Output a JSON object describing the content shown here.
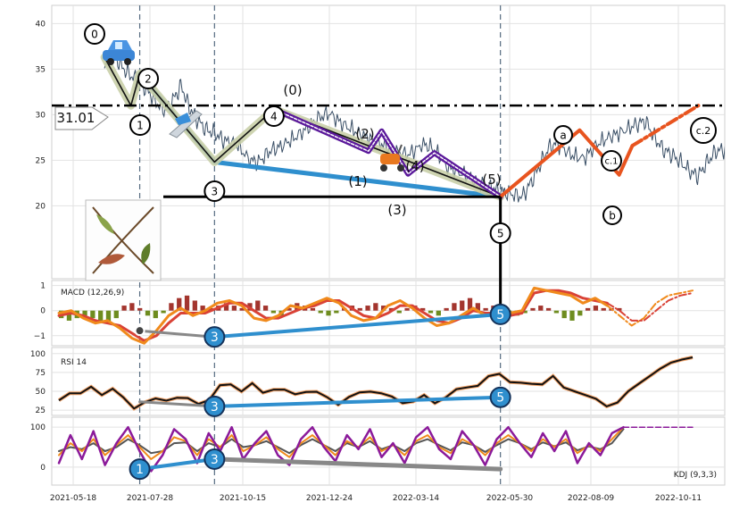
{
  "chart_data": [
    {
      "type": "line",
      "panel": "price",
      "ylim": [
        12,
        42
      ],
      "yticks": [
        20,
        25,
        30,
        35,
        40
      ],
      "grid": true,
      "reference_line": {
        "value": 31.01,
        "label": "31.01"
      },
      "x_dates": [
        "2021-05-18",
        "2021-07-28",
        "2021-10-15",
        "2021-12-24",
        "2022-03-14",
        "2022-05-30",
        "2022-08-09",
        "2022-10-11"
      ],
      "price_series": [
        [
          20,
          35.5
        ],
        [
          24,
          36.8
        ],
        [
          28,
          35.2
        ],
        [
          32,
          34.3
        ],
        [
          36,
          33.6
        ],
        [
          40,
          32.5
        ],
        [
          44,
          31.2
        ],
        [
          48,
          30.4
        ],
        [
          52,
          32.0
        ],
        [
          55,
          33.2
        ],
        [
          58,
          31.0
        ],
        [
          62,
          29.5
        ],
        [
          66,
          28.4
        ],
        [
          70,
          28.0
        ],
        [
          74,
          27.2
        ],
        [
          80,
          26.8
        ],
        [
          86,
          25.0
        ],
        [
          90,
          24.8
        ],
        [
          95,
          26.0
        ],
        [
          100,
          26.5
        ],
        [
          106,
          27.4
        ],
        [
          112,
          28.5
        ],
        [
          117,
          29.6
        ],
        [
          122,
          30.2
        ],
        [
          128,
          29.0
        ],
        [
          134,
          28.2
        ],
        [
          140,
          27.4
        ],
        [
          146,
          26.8
        ],
        [
          152,
          26.0
        ],
        [
          158,
          25.6
        ],
        [
          165,
          26.8
        ],
        [
          170,
          26.2
        ],
        [
          176,
          24.2
        ],
        [
          182,
          23.6
        ],
        [
          188,
          22.8
        ],
        [
          194,
          22.2
        ],
        [
          200,
          21.6
        ],
        [
          205,
          21.3
        ],
        [
          210,
          21.0
        ],
        [
          214,
          22.6
        ],
        [
          218,
          24.5
        ],
        [
          222,
          26.4
        ],
        [
          226,
          26.8
        ],
        [
          232,
          25.6
        ],
        [
          238,
          25.2
        ],
        [
          244,
          26.8
        ],
        [
          250,
          27.6
        ],
        [
          256,
          28.2
        ],
        [
          262,
          29.0
        ],
        [
          266,
          29.3
        ],
        [
          270,
          27.5
        ],
        [
          274,
          26.2
        ],
        [
          278,
          25.6
        ],
        [
          282,
          24.8
        ],
        [
          287,
          23.6
        ],
        [
          290,
          23.3
        ],
        [
          294,
          24.8
        ],
        [
          298,
          26.0
        ],
        [
          302,
          26.2
        ],
        [
          306,
          27.0
        ]
      ],
      "labels": [
        "0",
        "1",
        "2",
        "3",
        "4",
        "5",
        "(0)",
        "(1)",
        "(2)",
        "(3)",
        "(4)",
        "(5)",
        "a",
        "b",
        "c.1",
        "c.2"
      ],
      "lines": [
        {
          "name": "blue",
          "color": "#2f8fce",
          "points": [
            [
              36,
              34.5
            ],
            [
              70,
              24.8
            ],
            [
              200,
              21.0
            ]
          ]
        },
        {
          "name": "black",
          "color": "#111111",
          "points": [
            [
              20,
              36.3
            ],
            [
              32,
              31.0
            ],
            [
              36,
              34.5
            ],
            [
              70,
              24.8
            ],
            [
              97,
              30.6
            ],
            [
              200,
              21.0
            ]
          ]
        },
        {
          "name": "purple",
          "color": "#5a189a",
          "points": [
            [
              97,
              30.6
            ],
            [
              140,
              26.0
            ],
            [
              146,
              28.2
            ],
            [
              158,
              23.5
            ],
            [
              170,
              25.8
            ],
            [
              200,
              21.0
            ]
          ]
        },
        {
          "name": "orange",
          "color": "#e8541f",
          "points": [
            [
              200,
              21.0
            ],
            [
              236,
              28.3
            ],
            [
              254,
              23.4
            ],
            [
              260,
              26.6
            ],
            [
              290,
              31.0
            ]
          ]
        }
      ]
    },
    {
      "type": "bar",
      "panel": "macd",
      "title": "MACD (12,26,9)",
      "ylim": [
        -1.4,
        1.2
      ],
      "yticks": [
        -1,
        0,
        1
      ],
      "hist": [
        -0.3,
        -0.4,
        -0.3,
        -0.2,
        -0.3,
        -0.4,
        -0.5,
        -0.3,
        0.2,
        0.3,
        0.1,
        -0.2,
        -0.3,
        -0.1,
        0.3,
        0.5,
        0.6,
        0.4,
        0.2,
        0.1,
        0.2,
        0.3,
        0.2,
        0.1,
        0.3,
        0.4,
        0.2,
        -0.1,
        -0.2,
        0.1,
        0.3,
        0.2,
        0.1,
        -0.1,
        -0.2,
        -0.1,
        0.1,
        0.2,
        0.1,
        0.2,
        0.3,
        0.2,
        0.1,
        -0.1,
        0.1,
        0.2,
        0.1,
        -0.1,
        -0.2,
        0.1,
        0.3,
        0.4,
        0.5,
        0.3,
        0.1,
        0.2,
        0.1,
        -0.1,
        -0.2,
        -0.1,
        0.1,
        0.2,
        0.1,
        -0.1,
        -0.3,
        -0.4,
        -0.2,
        0.1,
        0.2,
        0.1,
        0.1,
        0.1
      ],
      "macd": [
        -0.1,
        0.0,
        -0.3,
        -0.5,
        -0.4,
        -0.7,
        -1.1,
        -1.3,
        -0.8,
        -0.2,
        0.1,
        -0.2,
        0.0,
        0.3,
        0.4,
        0.2,
        -0.3,
        -0.4,
        -0.2,
        0.2,
        0.1,
        0.3,
        0.5,
        0.3,
        -0.2,
        -0.4,
        -0.3,
        0.2,
        0.4,
        0.1,
        -0.3,
        -0.6,
        -0.5,
        -0.2,
        0.1,
        -0.2,
        -0.1,
        -0.1,
        0.0,
        0.9,
        0.8,
        0.7,
        0.6,
        0.3,
        0.5,
        0.2,
        -0.2,
        -0.6,
        -0.3,
        0.3,
        0.6,
        0.7,
        0.8
      ],
      "signal": [
        -0.2,
        -0.1,
        -0.2,
        -0.4,
        -0.5,
        -0.6,
        -0.9,
        -1.2,
        -1.0,
        -0.5,
        -0.1,
        -0.1,
        -0.1,
        0.1,
        0.3,
        0.3,
        0.0,
        -0.3,
        -0.3,
        -0.1,
        0.1,
        0.2,
        0.4,
        0.4,
        0.1,
        -0.2,
        -0.3,
        -0.1,
        0.2,
        0.2,
        -0.1,
        -0.4,
        -0.5,
        -0.3,
        0.0,
        -0.1,
        -0.1,
        -0.2,
        -0.1,
        0.7,
        0.8,
        0.8,
        0.7,
        0.5,
        0.4,
        0.3,
        0.0,
        -0.4,
        -0.4,
        0.0,
        0.4,
        0.6,
        0.7
      ],
      "trend": [
        [
          36,
          -0.8
        ],
        [
          70,
          -1.1
        ],
        [
          200,
          -0.1
        ]
      ]
    },
    {
      "type": "line",
      "panel": "rsi",
      "title": "RSI 14",
      "ylim": [
        18,
        108
      ],
      "yticks": [
        25,
        50,
        75,
        100
      ],
      "rsi": [
        38,
        50,
        45,
        55,
        48,
        52,
        40,
        30,
        35,
        38,
        40,
        42,
        38,
        35,
        40,
        55,
        60,
        52,
        58,
        48,
        55,
        50,
        45,
        52,
        48,
        40,
        35,
        42,
        46,
        52,
        48,
        40,
        36,
        38,
        42,
        35,
        44,
        50,
        55,
        60,
        68,
        72,
        65,
        60,
        58,
        62,
        70,
        55,
        50,
        45,
        40,
        30,
        35,
        50,
        60,
        70,
        80,
        88,
        92,
        95
      ],
      "trend": [
        [
          36,
          36
        ],
        [
          70,
          30
        ],
        [
          200,
          42
        ]
      ]
    },
    {
      "type": "line",
      "panel": "kdj",
      "title": "KDJ (9,3,3)",
      "ylim": [
        -45,
        125
      ],
      "yticks": [
        0,
        100
      ],
      "j": [
        10,
        80,
        20,
        90,
        5,
        60,
        100,
        40,
        -10,
        30,
        95,
        70,
        10,
        85,
        40,
        100,
        20,
        60,
        90,
        30,
        5,
        70,
        100,
        50,
        15,
        80,
        45,
        95,
        25,
        60,
        10,
        75,
        100,
        45,
        20,
        90,
        55,
        5,
        70,
        100,
        60,
        25,
        85,
        40,
        90,
        10,
        60,
        30,
        85,
        100,
        100,
        100,
        100,
        100,
        100,
        100
      ],
      "k": [
        30,
        60,
        40,
        70,
        30,
        55,
        80,
        50,
        20,
        40,
        75,
        65,
        30,
        70,
        50,
        80,
        40,
        55,
        75,
        45,
        25,
        60,
        80,
        55,
        30,
        65,
        50,
        75,
        40,
        55,
        30,
        65,
        80,
        50,
        35,
        70,
        55,
        30,
        60,
        80,
        60,
        40,
        70,
        50,
        70,
        35,
        55,
        40,
        70,
        100,
        100,
        100,
        100,
        100,
        100,
        100
      ],
      "d": [
        40,
        50,
        45,
        60,
        40,
        50,
        70,
        55,
        35,
        40,
        60,
        62,
        40,
        60,
        50,
        70,
        50,
        55,
        65,
        50,
        35,
        55,
        70,
        55,
        40,
        60,
        50,
        65,
        45,
        55,
        40,
        60,
        70,
        55,
        42,
        62,
        55,
        38,
        55,
        70,
        60,
        45,
        62,
        52,
        62,
        42,
        52,
        45,
        60,
        95,
        100,
        100,
        100,
        100,
        100,
        100
      ],
      "trends": [
        {
          "color": "#2f8fce",
          "points": [
            [
              36,
              -5
            ],
            [
              70,
              20
            ]
          ]
        },
        {
          "color": "#888888",
          "points": [
            [
              70,
              20
            ],
            [
              200,
              -5
            ]
          ]
        }
      ]
    }
  ]
}
